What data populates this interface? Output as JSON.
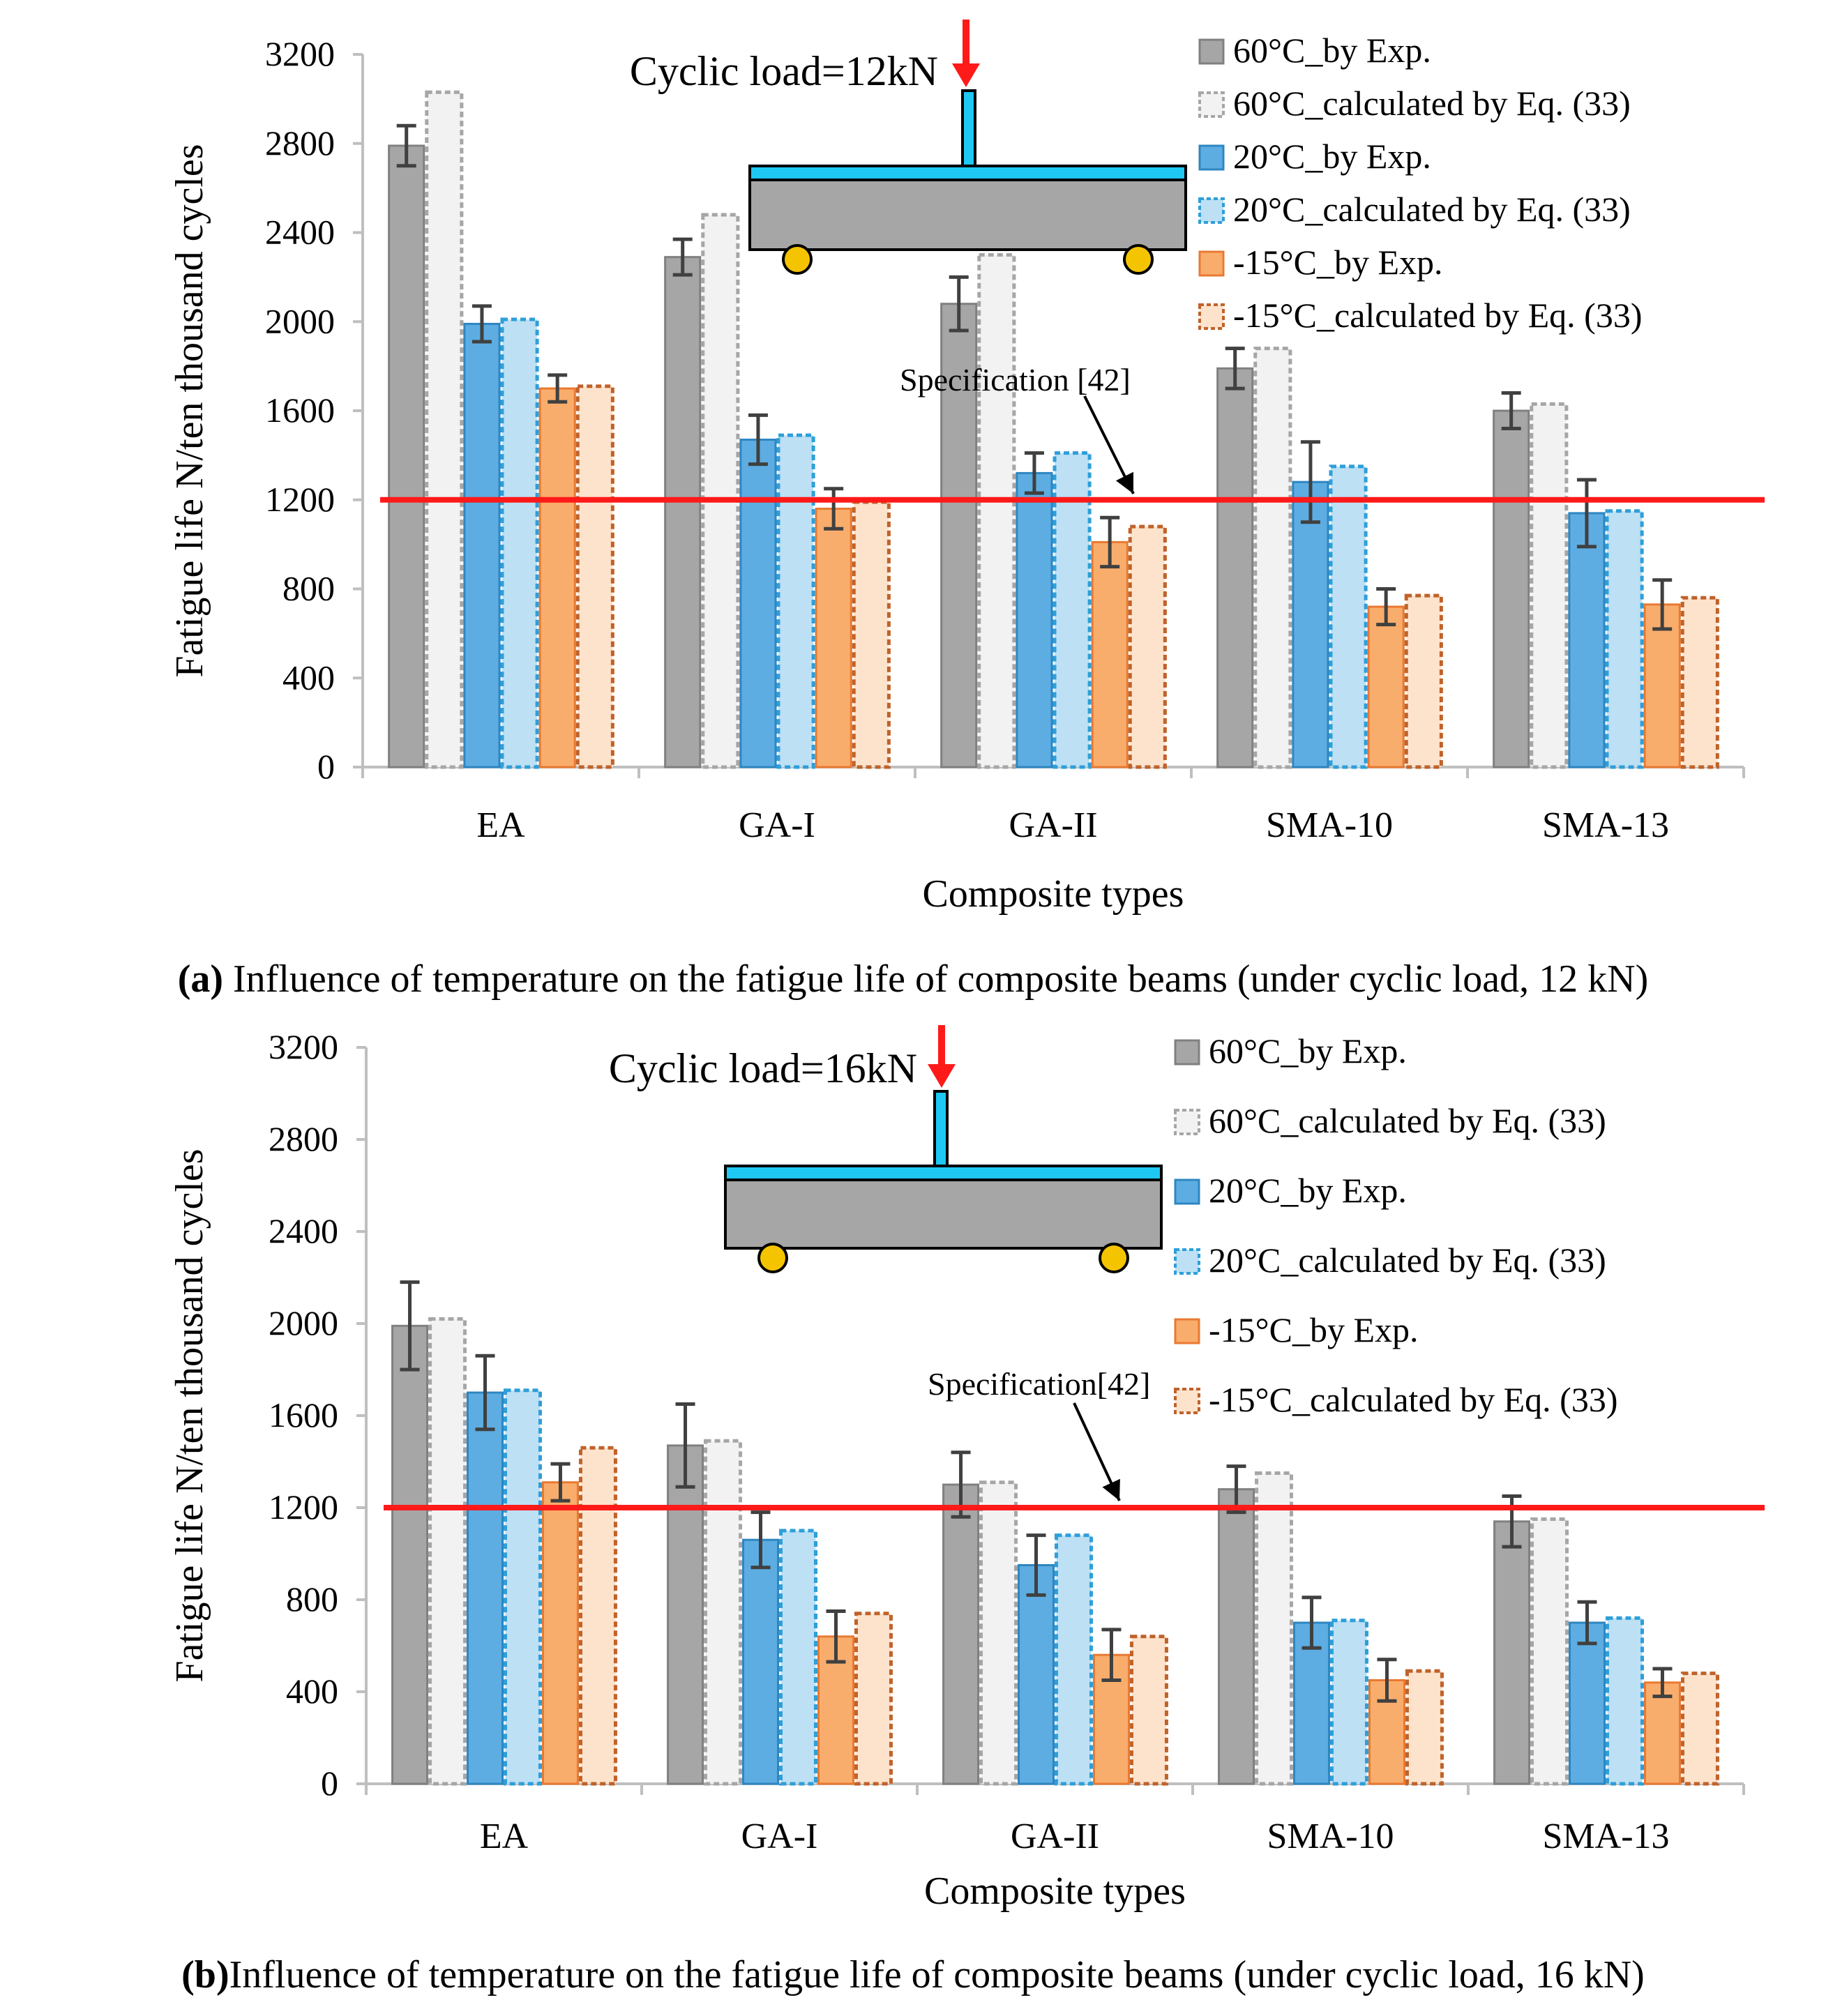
{
  "chart_data": [
    {
      "type": "bar",
      "panel_label": "(a)",
      "caption": "Influence of temperature on the fatigue life of composite beams (under cyclic load, 12 kN)",
      "xlabel": "Composite types",
      "ylabel": "Fatigue life  N/ten thousand cycles",
      "ylim": [
        0,
        3200
      ],
      "yticks": [
        0,
        400,
        800,
        1200,
        1600,
        2000,
        2400,
        2800,
        3200
      ],
      "categories": [
        "EA",
        "GA-I",
        "GA-II",
        "SMA-10",
        "SMA-13"
      ],
      "load_label": "Cyclic load=12kN",
      "spec_label": "Specification [42]",
      "spec_value": 1200,
      "series": [
        {
          "name": "60°C_by Exp.",
          "values": [
            2790,
            2290,
            2080,
            1790,
            1600
          ],
          "errors": [
            90,
            80,
            120,
            90,
            80
          ]
        },
        {
          "name": "60°C_calculated by Eq. (33)",
          "values": [
            3030,
            2480,
            2300,
            1880,
            1630
          ],
          "errors": null
        },
        {
          "name": "20°C_by Exp.",
          "values": [
            1990,
            1470,
            1320,
            1280,
            1140
          ],
          "errors": [
            80,
            110,
            90,
            180,
            150
          ]
        },
        {
          "name": "20°C_calculated by Eq. (33)",
          "values": [
            2010,
            1490,
            1410,
            1350,
            1150
          ],
          "errors": null
        },
        {
          "name": "-15°C_by Exp.",
          "values": [
            1700,
            1160,
            1010,
            720,
            730
          ],
          "errors": [
            60,
            90,
            110,
            80,
            110
          ]
        },
        {
          "name": "-15°C_calculated by Eq. (33)",
          "values": [
            1710,
            1190,
            1080,
            770,
            760
          ],
          "errors": null
        }
      ]
    },
    {
      "type": "bar",
      "panel_label": "(b)",
      "caption": "Influence of temperature on the fatigue life of composite beams (under cyclic load, 16 kN)",
      "xlabel": "Composite types",
      "ylabel": "Fatigue life  N/ten thousand cycles",
      "ylim": [
        0,
        3200
      ],
      "yticks": [
        0,
        400,
        800,
        1200,
        1600,
        2000,
        2400,
        2800,
        3200
      ],
      "categories": [
        "EA",
        "GA-I",
        "GA-II",
        "SMA-10",
        "SMA-13"
      ],
      "load_label": "Cyclic load=16kN",
      "spec_label": "Specification[42]",
      "spec_value": 1200,
      "series": [
        {
          "name": "60°C_by Exp.",
          "values": [
            1990,
            1470,
            1300,
            1280,
            1140
          ],
          "errors": [
            190,
            180,
            140,
            100,
            110
          ]
        },
        {
          "name": "60°C_calculated by Eq. (33)",
          "values": [
            2020,
            1490,
            1310,
            1350,
            1150
          ],
          "errors": null
        },
        {
          "name": "20°C_by Exp.",
          "values": [
            1700,
            1060,
            950,
            700,
            700
          ],
          "errors": [
            160,
            120,
            130,
            110,
            90
          ]
        },
        {
          "name": "20°C_calculated by Eq. (33)",
          "values": [
            1710,
            1100,
            1080,
            710,
            720
          ],
          "errors": null
        },
        {
          "name": "-15°C_by Exp.",
          "values": [
            1310,
            640,
            560,
            450,
            440
          ],
          "errors": [
            80,
            110,
            110,
            90,
            60
          ]
        },
        {
          "name": "-15°C_calculated by Eq. (33)",
          "values": [
            1460,
            740,
            640,
            490,
            480
          ],
          "errors": null
        }
      ]
    }
  ],
  "series_colors": {
    "fill": [
      "#a6a6a6",
      "#f2f2f2",
      "#5dade2",
      "#bde0f5",
      "#f9ad6c",
      "#fde3cc"
    ],
    "stroke": [
      "#808080",
      "#a6a6a6",
      "#2e86c1",
      "#2e9fd9",
      "#e97932",
      "#c0622a"
    ],
    "dashed": [
      false,
      true,
      false,
      true,
      false,
      true
    ]
  },
  "colors": {
    "spec_line": "#ff1a1a",
    "beam_top": "#1ec8f2",
    "beam_body": "#a6a6a6",
    "support": "#f5c400",
    "load_arrow": "#ff1a1a",
    "error_bar": "#404040",
    "axis": "#bfbfbf"
  }
}
